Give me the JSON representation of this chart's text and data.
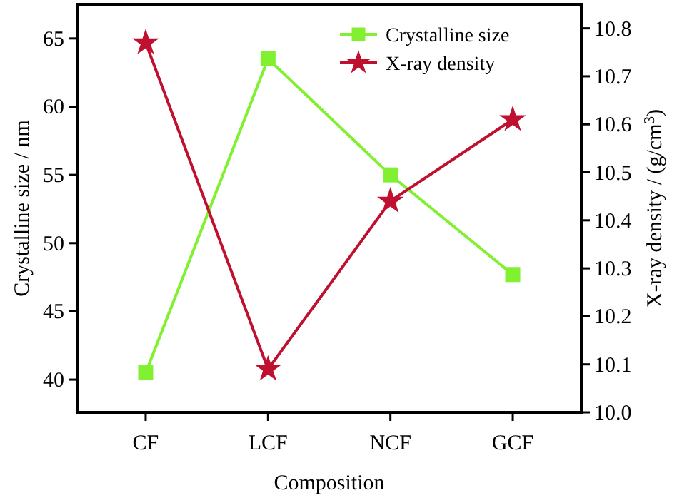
{
  "chart_data": {
    "type": "line",
    "xlabel": "Composition",
    "ylabel": "Crystalline size / nm",
    "y2label": "X-ray density / (g/cm$^{3}$)",
    "categories": [
      "CF",
      "LCF",
      "NCF",
      "GCF"
    ],
    "series": [
      {
        "name": "Crystalline size",
        "color": "#80f030",
        "values": [
          40.5,
          63.5,
          55.0,
          47.7
        ],
        "marker": "square"
      },
      {
        "name": "X-ray density",
        "color": "#c01030",
        "values": [
          10.77,
          10.09,
          10.44,
          10.61
        ],
        "marker": "star",
        "axis": "y2"
      }
    ],
    "ylim": [
      37.6,
      67.5
    ],
    "yticks": [
      40,
      45,
      50,
      55,
      60,
      65
    ],
    "y2lim": [
      10.0,
      10.85
    ],
    "y2ticks": [
      {
        "value": 10,
        "label": "10.0"
      },
      10.1,
      10.2,
      10.3,
      10.4,
      10.5,
      10.6,
      10.7,
      10.8
    ],
    "legend": "top right",
    "grid": false,
    "line_style": "solid"
  }
}
